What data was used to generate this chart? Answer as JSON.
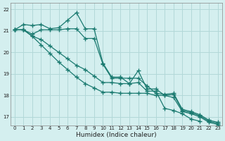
{
  "xlabel": "Humidex (Indice chaleur)",
  "xlim": [
    -0.5,
    23.5
  ],
  "ylim": [
    16.6,
    22.3
  ],
  "yticks": [
    17,
    18,
    19,
    20,
    21,
    22
  ],
  "xticks": [
    0,
    1,
    2,
    3,
    4,
    5,
    6,
    7,
    8,
    9,
    10,
    11,
    12,
    13,
    14,
    15,
    16,
    17,
    18,
    19,
    20,
    21,
    22,
    23
  ],
  "bg_color": "#d4efef",
  "grid_color": "#b2d8d8",
  "line_color": "#1a7a70",
  "lines": [
    [
      21.05,
      21.3,
      21.25,
      21.3,
      21.1,
      21.15,
      21.5,
      21.85,
      21.1,
      21.1,
      19.5,
      18.85,
      18.85,
      18.55,
      18.6,
      18.2,
      18.2,
      17.4,
      17.3,
      17.15,
      16.9,
      16.8,
      null,
      null
    ],
    [
      21.05,
      21.05,
      20.85,
      21.05,
      21.05,
      21.05,
      21.1,
      21.1,
      20.65,
      20.65,
      19.45,
      18.8,
      18.8,
      18.8,
      18.8,
      18.45,
      18.1,
      18.05,
      18.1,
      17.35,
      17.25,
      17.1,
      16.85,
      16.75
    ],
    [
      21.05,
      21.05,
      20.75,
      20.6,
      20.3,
      20.0,
      19.7,
      19.4,
      19.2,
      18.9,
      18.6,
      18.6,
      18.55,
      18.55,
      19.15,
      18.3,
      18.3,
      18.0,
      18.05,
      17.3,
      17.2,
      17.05,
      16.8,
      16.7
    ],
    [
      21.05,
      21.05,
      20.75,
      20.35,
      19.95,
      19.55,
      19.2,
      18.85,
      18.55,
      18.35,
      18.15,
      18.15,
      18.1,
      18.1,
      18.1,
      18.1,
      18.0,
      18.0,
      17.9,
      17.25,
      17.15,
      17.0,
      16.75,
      16.65
    ]
  ]
}
